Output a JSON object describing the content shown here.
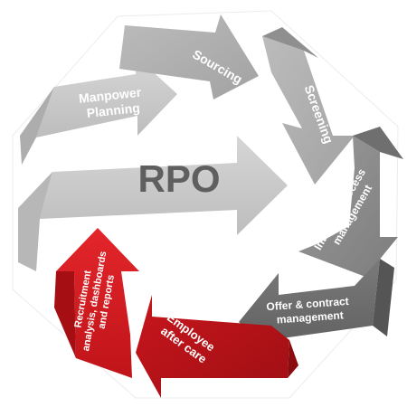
{
  "diagram": {
    "center_label": "RPO",
    "steps": [
      {
        "id": "manpower-planning",
        "lines": [
          "Manpower",
          "Planning"
        ]
      },
      {
        "id": "sourcing",
        "lines": [
          "Sourcing"
        ]
      },
      {
        "id": "screening",
        "lines": [
          "Screening"
        ]
      },
      {
        "id": "interview-process-management",
        "lines": [
          "Interview process",
          "management"
        ]
      },
      {
        "id": "offer-contract-management",
        "lines": [
          "Offer & contract",
          "management"
        ]
      },
      {
        "id": "employee-after-care",
        "lines": [
          "Employee",
          "after care"
        ]
      },
      {
        "id": "recruitment-analysis",
        "lines": [
          "Recruitment",
          "analysis, dashboards",
          "and reports"
        ]
      }
    ]
  },
  "colors": {
    "light_grey": "#c4c4c4",
    "mid_grey": "#a9a9a9",
    "dark_grey": "#8a8a8a",
    "darker_grey": "#6e6e6e",
    "red": "#d7191f",
    "dark_red": "#b01218",
    "center_text": "#5f5f5f",
    "label_text": "#ffffff"
  }
}
